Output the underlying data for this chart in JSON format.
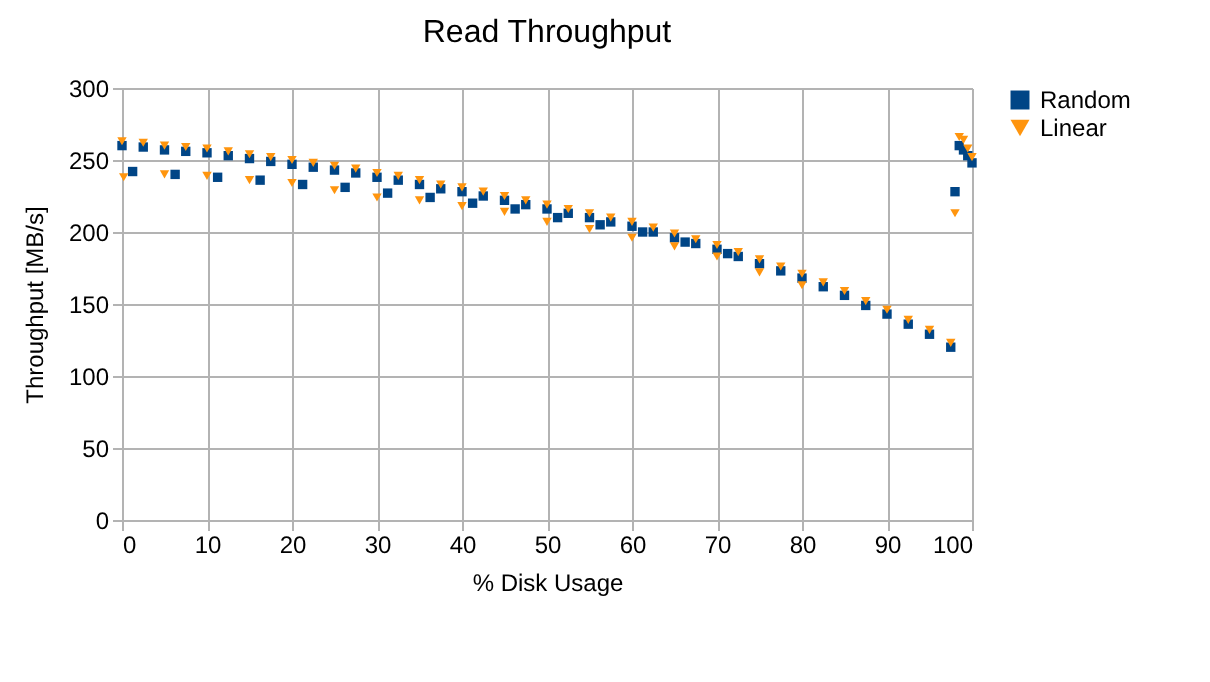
{
  "chart_data": {
    "type": "scatter",
    "title": "Read Throughput",
    "xlabel": "% Disk Usage",
    "ylabel": "Throughput [MB/s]",
    "xlim": [
      0,
      100
    ],
    "xticks": [
      0,
      10,
      20,
      30,
      40,
      50,
      60,
      70,
      80,
      90,
      100
    ],
    "ylim": [
      0,
      300
    ],
    "yticks": [
      0,
      50,
      100,
      150,
      200,
      250,
      300
    ],
    "grid": true,
    "legend": "right",
    "series": [
      {
        "name": "Random",
        "color": "#004586",
        "marker": "square",
        "x": [
          0,
          2.5,
          5,
          7.5,
          10,
          12.5,
          15,
          17.5,
          20,
          22.5,
          25,
          27.5,
          30,
          32.5,
          35,
          37.5,
          40,
          42.5,
          45,
          47.5,
          50,
          52.5,
          55,
          57.5,
          60,
          62.5,
          65,
          67.5,
          70,
          72.5,
          75,
          77.5,
          80,
          82.5,
          85,
          87.5,
          90,
          92.5,
          95,
          97.5,
          1.25,
          6.25,
          11.25,
          16.25,
          21.25,
          26.25,
          31.25,
          36.25,
          41.25,
          46.25,
          51.25,
          56.25,
          61.25,
          66.25,
          71.25,
          98,
          98.5,
          99,
          99.5,
          100
        ],
        "values": [
          260,
          259,
          257,
          256,
          255,
          253,
          251,
          249,
          247,
          245,
          243,
          241,
          238,
          236,
          233,
          230,
          228,
          225,
          222,
          219,
          216,
          213,
          210,
          207,
          204,
          200,
          196,
          192,
          188,
          183,
          178,
          173,
          168,
          162,
          156,
          149,
          143,
          136,
          129,
          120,
          242,
          240,
          238,
          236,
          233,
          231,
          227,
          224,
          220,
          216,
          210,
          205,
          200,
          193,
          185,
          228,
          260,
          257,
          253,
          248
        ]
      },
      {
        "name": "Linear",
        "color": "#ff950e",
        "marker": "triangle",
        "x": [
          0,
          2.5,
          5,
          7.5,
          10,
          12.5,
          15,
          17.5,
          20,
          22.5,
          25,
          27.5,
          30,
          32.5,
          35,
          37.5,
          40,
          42.5,
          45,
          47.5,
          50,
          52.5,
          55,
          57.5,
          60,
          62.5,
          65,
          67.5,
          70,
          72.5,
          75,
          77.5,
          80,
          82.5,
          85,
          87.5,
          90,
          92.5,
          95,
          97.5,
          0.2,
          5,
          10,
          15,
          20,
          25,
          30,
          35,
          40,
          45,
          50,
          55,
          60,
          65,
          70,
          75,
          80,
          98,
          98.5,
          99,
          99.5,
          100
        ],
        "values": [
          263,
          262,
          260,
          259,
          258,
          256,
          254,
          252,
          250,
          248,
          246,
          244,
          241,
          239,
          236,
          233,
          231,
          228,
          225,
          222,
          219,
          216,
          213,
          210,
          207,
          203,
          199,
          195,
          191,
          186,
          181,
          176,
          171,
          165,
          159,
          152,
          146,
          139,
          132,
          123,
          238,
          240,
          239,
          236,
          234,
          229,
          224,
          222,
          218,
          214,
          207,
          202,
          196,
          190,
          183,
          172,
          163,
          213,
          266,
          264,
          258,
          252
        ]
      }
    ]
  }
}
